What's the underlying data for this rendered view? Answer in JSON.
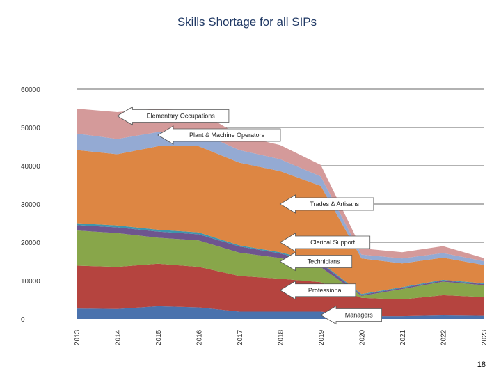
{
  "title": "Skills Shortage for all SIPs",
  "page_number": "18",
  "chart_data": {
    "type": "area",
    "stacked": true,
    "grid": true,
    "legend": "none",
    "x": [
      "2013",
      "2014",
      "2015",
      "2016",
      "2017",
      "2018",
      "2019",
      "2020",
      "2021",
      "2022",
      "2023"
    ],
    "ylim": [
      0,
      60000
    ],
    "yticks": [
      0,
      10000,
      20000,
      30000,
      40000,
      50000,
      60000
    ],
    "series": [
      {
        "name": "Managers",
        "color": "#4a72ad",
        "values": [
          2700,
          2600,
          3300,
          3000,
          1900,
          1900,
          1900,
          700,
          700,
          900,
          800
        ]
      },
      {
        "name": "Professional",
        "color": "#b5443f",
        "values": [
          11200,
          11000,
          11100,
          10600,
          9300,
          8600,
          7700,
          4800,
          4400,
          5300,
          4900
        ]
      },
      {
        "name": "Technicians",
        "color": "#88a64a",
        "values": [
          9200,
          8800,
          6800,
          6900,
          6100,
          5400,
          3900,
          500,
          2700,
          3500,
          3100
        ]
      },
      {
        "name": "Clerical Support",
        "color": "#6e558f",
        "values": [
          1400,
          1500,
          1600,
          1600,
          1600,
          1200,
          1000,
          300,
          300,
          300,
          300
        ]
      },
      {
        "name": "",
        "color": "#3e95ad",
        "values": [
          500,
          500,
          500,
          500,
          300,
          300,
          300,
          200,
          200,
          200,
          200
        ]
      },
      {
        "name": "Trades & Artisans",
        "color": "#dd8643",
        "values": [
          19100,
          18600,
          21800,
          22500,
          21600,
          21200,
          19900,
          9300,
          6200,
          5800,
          4800
        ]
      },
      {
        "name": "Plant & Machine Operators",
        "color": "#94aad3",
        "values": [
          4300,
          4000,
          3700,
          3700,
          3300,
          3100,
          2500,
          1000,
          1300,
          1200,
          1000
        ]
      },
      {
        "name": "Elementary Occupations",
        "color": "#d49a9a",
        "values": [
          6500,
          7000,
          6100,
          5400,
          3800,
          3700,
          3000,
          1600,
          1600,
          1800,
          800
        ]
      }
    ],
    "annotations": [
      {
        "text": "Elementary Occupations",
        "x": "2014",
        "y": 53000
      },
      {
        "text": "Plant & Machine Operators",
        "x": "2015",
        "y": 48000
      },
      {
        "text": "Trades & Artisans",
        "x": "2018",
        "y": 30000
      },
      {
        "text": "Clerical Support",
        "x": "2018",
        "y": 20000
      },
      {
        "text": "Technicians",
        "x": "2018",
        "y": 15000
      },
      {
        "text": "Professional",
        "x": "2018",
        "y": 7500
      },
      {
        "text": "Managers",
        "x": "2019",
        "y": 1000
      }
    ]
  }
}
